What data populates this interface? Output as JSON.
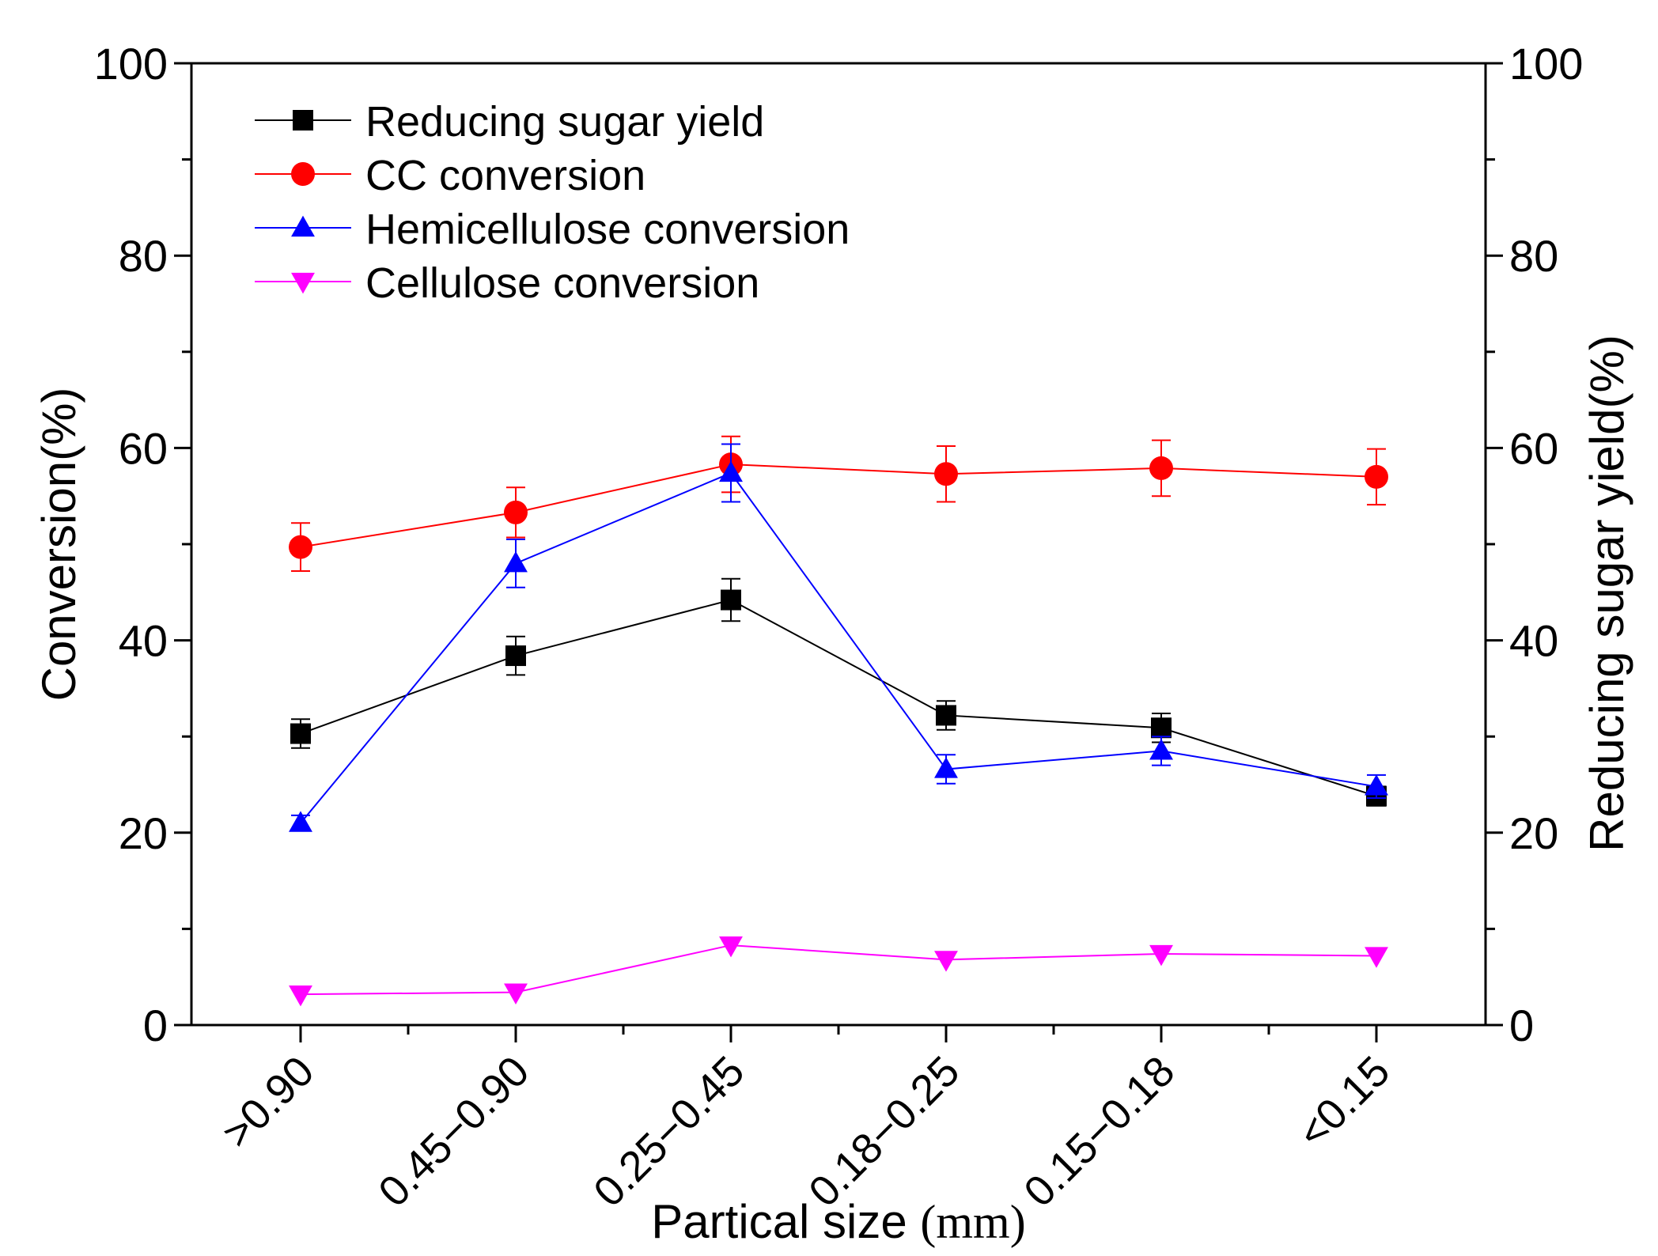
{
  "chart_data": {
    "type": "line",
    "xlabel_main": "Partical size ",
    "xlabel_unit": "(mm)",
    "ylabel_left": "Conversion(%)",
    "ylabel_right": "Reducing sugar yield(%)",
    "ylim": [
      0,
      100
    ],
    "yticks": [
      0,
      20,
      40,
      60,
      80,
      100
    ],
    "ytick_labels": [
      "0",
      "20",
      "40",
      "60",
      "80",
      "100"
    ],
    "categories": [
      ">0.90",
      "0.45−0.90",
      "0.25−0.45",
      "0.18−0.25",
      "0.15−0.18",
      "<0.15"
    ],
    "legend_position": "top-left",
    "series": [
      {
        "name": "Reducing sugar yield",
        "axis": "right",
        "color": "#000000",
        "marker": "square",
        "values": [
          30.3,
          38.4,
          44.2,
          32.2,
          30.9,
          23.8
        ],
        "errors": [
          1.5,
          2.0,
          2.2,
          1.5,
          1.5,
          1.0
        ]
      },
      {
        "name": "CC conversion",
        "axis": "left",
        "color": "#ff0000",
        "marker": "circle",
        "values": [
          49.7,
          53.3,
          58.3,
          57.3,
          57.9,
          57.0
        ],
        "errors": [
          2.5,
          2.6,
          2.9,
          2.9,
          2.9,
          2.9
        ]
      },
      {
        "name": "Hemicellulose conversion",
        "axis": "left",
        "color": "#0000ff",
        "marker": "triangle-up",
        "values": [
          21.0,
          48.0,
          57.4,
          26.6,
          28.5,
          24.8
        ],
        "errors": [
          0.8,
          2.5,
          3.0,
          1.5,
          1.5,
          1.2
        ]
      },
      {
        "name": "Cellulose conversion",
        "axis": "left",
        "color": "#ff00ff",
        "marker": "triangle-down",
        "values": [
          3.2,
          3.4,
          8.3,
          6.8,
          7.4,
          7.2
        ],
        "errors": [
          0,
          0,
          0,
          0,
          0,
          0
        ]
      }
    ]
  }
}
